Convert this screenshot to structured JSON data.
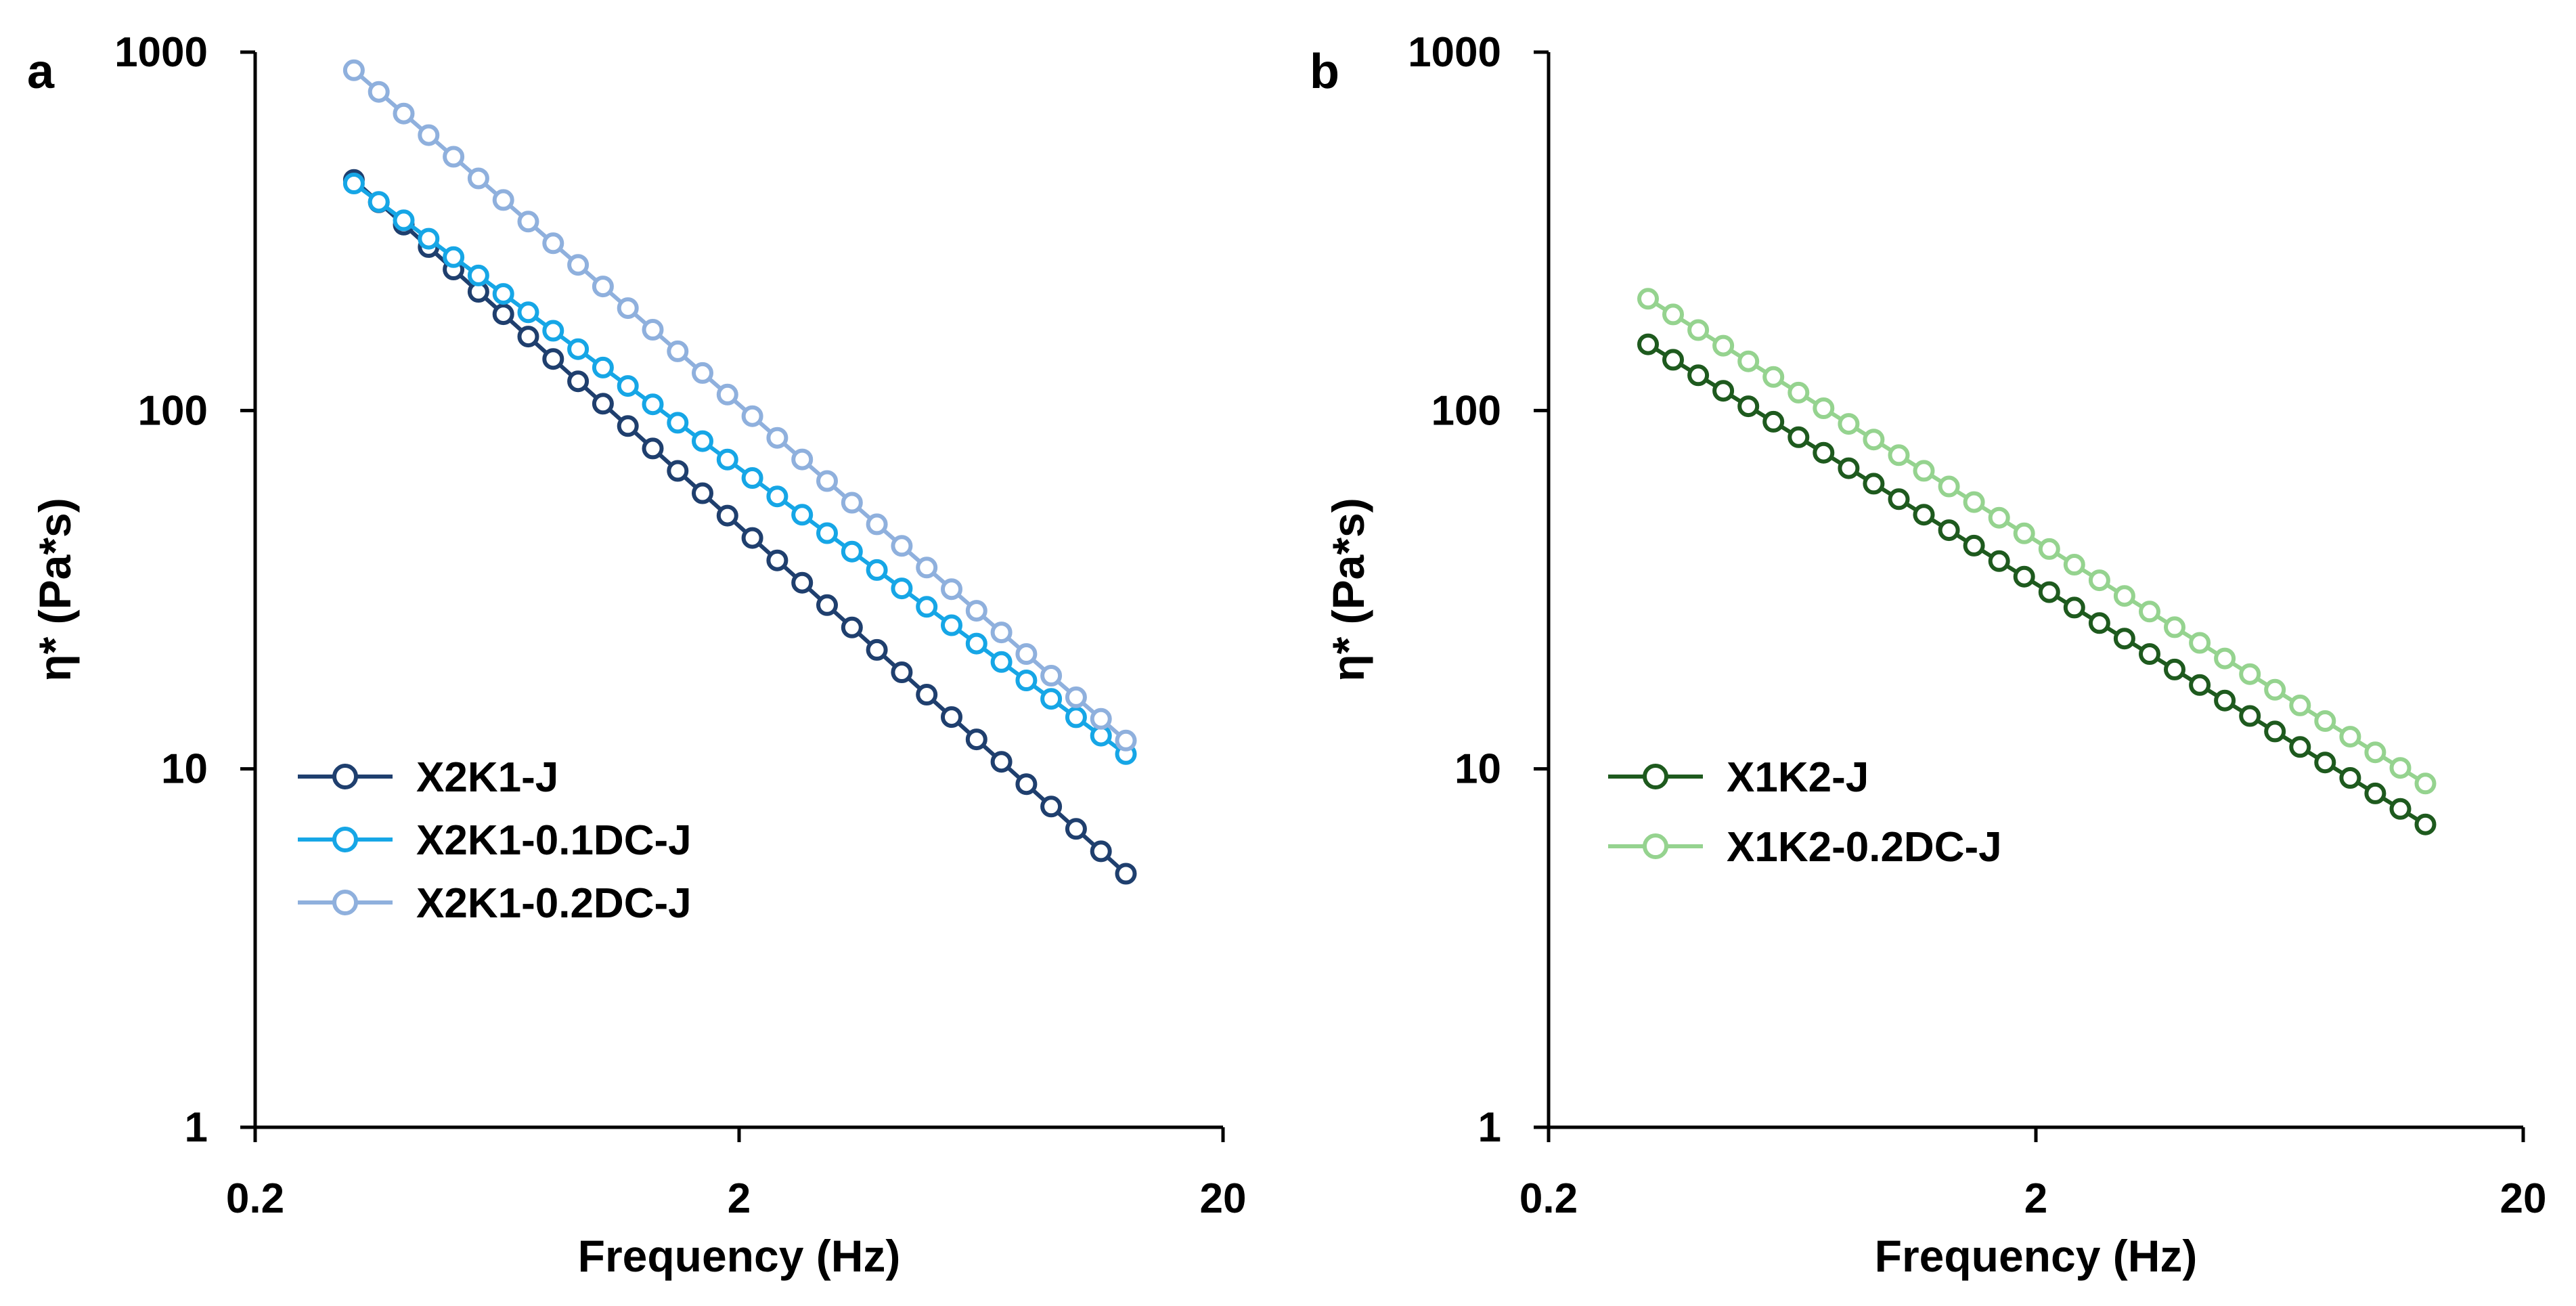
{
  "chart_data": [
    {
      "panel": "a",
      "type": "line",
      "scale": {
        "x": "log",
        "y": "log"
      },
      "xlabel": "Frequency (Hz)",
      "ylabel": "η* (Pa*s)",
      "xlim": [
        0.2,
        20
      ],
      "ylim": [
        1,
        1000
      ],
      "xticks": [
        "0.2",
        "2",
        "20"
      ],
      "yticks": [
        "1",
        "10",
        "100",
        "1000"
      ],
      "legend_position": "lower-left",
      "series": [
        {
          "name": "X2K1-J",
          "color": "#1f3f6e",
          "marker": "open-circle",
          "x_range": [
            0.32,
            12.6
          ],
          "y_start": 440,
          "y_end": 5.1,
          "points": 32
        },
        {
          "name": "X2K1-0.1DC-J",
          "color": "#16a6e6",
          "marker": "open-circle",
          "x_range": [
            0.32,
            12.6
          ],
          "y_start": 430,
          "y_end": 11,
          "points": 32
        },
        {
          "name": "X2K1-0.2DC-J",
          "color": "#8fb0dd",
          "marker": "open-circle",
          "x_range": [
            0.32,
            12.6
          ],
          "y_start": 890,
          "y_end": 12,
          "points": 32
        }
      ]
    },
    {
      "panel": "b",
      "type": "line",
      "scale": {
        "x": "log",
        "y": "log"
      },
      "xlabel": "Frequency (Hz)",
      "ylabel": "η* (Pa*s)",
      "xlim": [
        0.2,
        20
      ],
      "ylim": [
        1,
        1000
      ],
      "xticks": [
        "0.2",
        "2",
        "20"
      ],
      "yticks": [
        "1",
        "10",
        "100",
        "1000"
      ],
      "legend_position": "lower-left",
      "series": [
        {
          "name": "X1K2-J",
          "color": "#1e5a1e",
          "marker": "open-circle",
          "x_range": [
            0.32,
            12.6
          ],
          "y_start": 153,
          "y_end": 7.0,
          "points": 32
        },
        {
          "name": "X1K2-0.2DC-J",
          "color": "#95d38f",
          "marker": "open-circle",
          "x_range": [
            0.32,
            12.6
          ],
          "y_start": 205,
          "y_end": 9.1,
          "points": 32
        }
      ]
    }
  ]
}
